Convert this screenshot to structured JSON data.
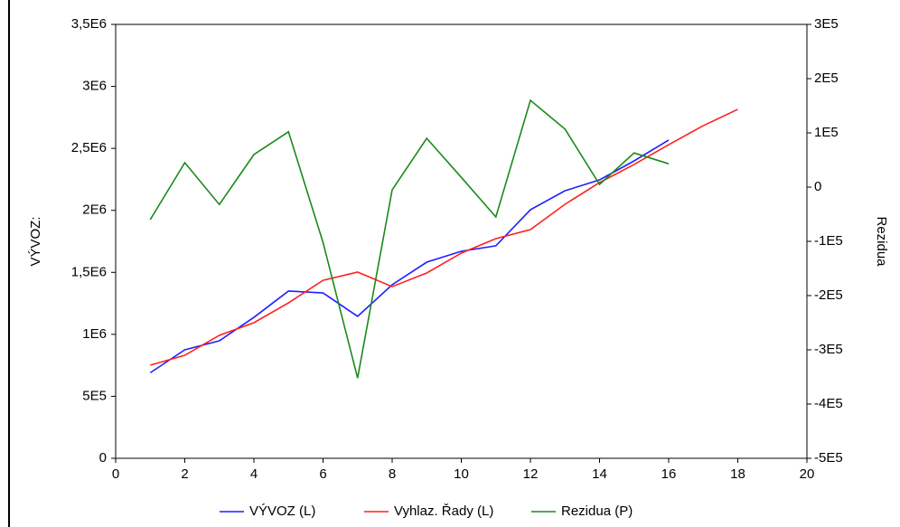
{
  "chart_data": {
    "type": "line",
    "x_label": null,
    "y_label": "VÝVOZ:",
    "y2_label": "Rezidua",
    "xlim": [
      0,
      20
    ],
    "xticks": [
      0,
      2,
      4,
      6,
      8,
      10,
      12,
      14,
      16,
      18,
      20
    ],
    "ylim": [
      0,
      3500000
    ],
    "yticks": [
      0,
      {
        "value": 500000,
        "label": "5E5"
      },
      {
        "value": 1000000,
        "label": "1E6"
      },
      {
        "value": 1500000,
        "label": "1,5E6"
      },
      {
        "value": 2000000,
        "label": "2E6"
      },
      {
        "value": 2500000,
        "label": "2,5E6"
      },
      {
        "value": 3000000,
        "label": "3E6"
      },
      {
        "value": 3500000,
        "label": "3,5E6"
      }
    ],
    "y2lim": [
      -500000,
      300000
    ],
    "y2ticks": [
      {
        "value": -500000,
        "label": "-5E5"
      },
      {
        "value": -400000,
        "label": "-4E5"
      },
      {
        "value": -300000,
        "label": "-3E5"
      },
      {
        "value": -200000,
        "label": "-2E5"
      },
      {
        "value": -100000,
        "label": "-1E5"
      },
      0,
      {
        "value": 100000,
        "label": "1E5"
      },
      {
        "value": 200000,
        "label": "2E5"
      },
      {
        "value": 300000,
        "label": "3E5"
      }
    ],
    "series": [
      {
        "name": "VÝVOZ (L)",
        "color": "#1f1fff",
        "x": [
          1,
          2,
          3,
          4,
          5,
          6,
          7,
          8,
          9,
          10,
          11,
          12,
          13,
          14,
          15,
          16
        ],
        "values": [
          690000,
          875000,
          948000,
          1137000,
          1349000,
          1334000,
          1145000,
          1400000,
          1582000,
          1670000,
          1714000,
          2005000,
          2158000,
          2246000,
          2399000,
          2567000
        ]
      },
      {
        "name": "Vyhlaz. Řady (L)",
        "color": "#ff2020",
        "x": [
          1,
          2,
          3,
          4,
          5,
          6,
          7,
          8,
          9,
          10,
          11,
          12,
          13,
          14,
          15,
          16,
          17,
          18
        ],
        "values": [
          751000,
          831000,
          992000,
          1094000,
          1254000,
          1436000,
          1502000,
          1385000,
          1495000,
          1655000,
          1772000,
          1845000,
          2049000,
          2224000,
          2370000,
          2530000,
          2683000,
          2815000
        ]
      },
      {
        "name": "Rezidua (P)",
        "color": "#1a8a1a",
        "axis": "y2",
        "x": [
          1,
          2,
          3,
          4,
          5,
          6,
          7,
          8,
          9,
          10,
          11,
          12,
          13,
          14,
          15,
          16
        ],
        "values": [
          -60000,
          45000,
          -32000,
          60000,
          102000,
          -102000,
          -352000,
          -5000,
          90000,
          18000,
          -55000,
          160000,
          107000,
          5000,
          63000,
          43000
        ]
      }
    ]
  }
}
